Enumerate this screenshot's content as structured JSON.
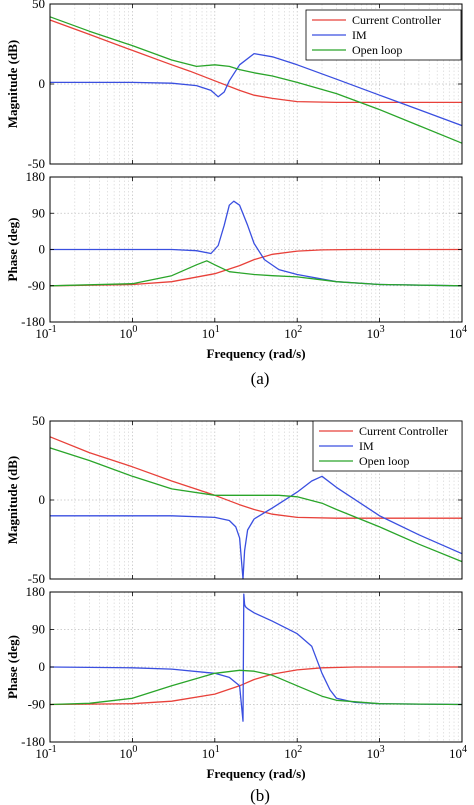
{
  "figures": [
    {
      "caption": "(a)",
      "xlabel": "Frequency  (rad/s)",
      "x_ticks": [
        {
          "base": "10",
          "exp": "-1"
        },
        {
          "base": "10",
          "exp": "0"
        },
        {
          "base": "10",
          "exp": "1"
        },
        {
          "base": "10",
          "exp": "2"
        },
        {
          "base": "10",
          "exp": "3"
        },
        {
          "base": "10",
          "exp": "4"
        }
      ],
      "mag_ylabel": "Magnitude (dB)",
      "mag_ticks": [
        "50",
        "0",
        "-50"
      ],
      "phase_ylabel": "Phase (deg)",
      "phase_ticks": [
        "180",
        "90",
        "0",
        "-90",
        "-180"
      ]
    },
    {
      "caption": "(b)",
      "xlabel": "Frequency  (rad/s)",
      "x_ticks": [
        {
          "base": "10",
          "exp": "-1"
        },
        {
          "base": "10",
          "exp": "0"
        },
        {
          "base": "10",
          "exp": "1"
        },
        {
          "base": "10",
          "exp": "2"
        },
        {
          "base": "10",
          "exp": "3"
        },
        {
          "base": "10",
          "exp": "4"
        }
      ],
      "mag_ylabel": "Magnitude (dB)",
      "mag_ticks": [
        "50",
        "0",
        "-50"
      ],
      "phase_ylabel": "Phase (deg)",
      "phase_ticks": [
        "180",
        "90",
        "0",
        "-90",
        "-180"
      ]
    }
  ],
  "chart_data": [
    {
      "type": "line",
      "panel": "(a) magnitude",
      "xscale": "log",
      "xlim": [
        0.1,
        10000
      ],
      "ylabel": "Magnitude (dB)",
      "ylim": [
        -50,
        50
      ],
      "grid": true,
      "legend_position": "top-right",
      "series": [
        {
          "name": "Current Controller",
          "color": "#e8413a",
          "x": [
            0.1,
            0.3,
            1,
            3,
            5,
            10,
            20,
            30,
            50,
            100,
            300,
            1000,
            10000
          ],
          "y": [
            40,
            31,
            21,
            12,
            8,
            2,
            -4,
            -7,
            -9,
            -11,
            -11.5,
            -11.5,
            -11.5
          ]
        },
        {
          "name": "IM",
          "color": "#3a4fe0",
          "x": [
            0.1,
            1,
            3,
            6,
            9,
            11,
            13,
            15,
            20,
            30,
            50,
            100,
            300,
            1000,
            3000,
            10000
          ],
          "y": [
            1,
            1,
            0.5,
            -1,
            -4,
            -8,
            -5,
            2,
            12,
            19,
            17,
            12,
            3,
            -7,
            -16,
            -26
          ]
        },
        {
          "name": "Open loop",
          "color": "#2aa52a",
          "x": [
            0.1,
            0.3,
            1,
            3,
            6,
            10,
            15,
            20,
            30,
            50,
            100,
            300,
            1000,
            3000,
            10000
          ],
          "y": [
            42,
            33,
            24,
            15,
            11,
            12,
            11,
            9,
            7,
            5,
            1,
            -6,
            -16,
            -26,
            -37
          ]
        }
      ]
    },
    {
      "type": "line",
      "panel": "(a) phase",
      "xscale": "log",
      "xlim": [
        0.1,
        10000
      ],
      "xlabel": "Frequency  (rad/s)",
      "ylabel": "Phase (deg)",
      "ylim": [
        -180,
        180
      ],
      "grid": true,
      "series": [
        {
          "name": "Current Controller",
          "color": "#e8413a",
          "x": [
            0.1,
            1,
            3,
            10,
            20,
            30,
            50,
            100,
            200,
            500,
            1000,
            10000
          ],
          "y": [
            -90,
            -87,
            -80,
            -60,
            -40,
            -25,
            -12,
            -4,
            -1,
            0,
            0,
            0
          ]
        },
        {
          "name": "IM",
          "color": "#3a4fe0",
          "x": [
            0.1,
            1,
            3,
            6,
            9,
            11,
            13,
            15,
            17,
            20,
            25,
            30,
            40,
            60,
            100,
            300,
            1000,
            10000
          ],
          "y": [
            0,
            0,
            0,
            -3,
            -10,
            10,
            60,
            110,
            120,
            110,
            60,
            15,
            -25,
            -50,
            -62,
            -80,
            -87,
            -90
          ]
        },
        {
          "name": "Open loop",
          "color": "#2aa52a",
          "x": [
            0.1,
            1,
            3,
            6,
            8,
            10,
            15,
            20,
            30,
            50,
            100,
            300,
            1000,
            10000
          ],
          "y": [
            -90,
            -85,
            -65,
            -38,
            -28,
            -38,
            -55,
            -58,
            -62,
            -65,
            -68,
            -80,
            -87,
            -90
          ]
        }
      ]
    },
    {
      "type": "line",
      "panel": "(b) magnitude",
      "xscale": "log",
      "xlim": [
        0.1,
        10000
      ],
      "ylabel": "Magnitude (dB)",
      "ylim": [
        -50,
        50
      ],
      "grid": true,
      "legend_position": "top-right",
      "series": [
        {
          "name": "Current Controller",
          "color": "#e8413a",
          "x": [
            0.1,
            0.3,
            1,
            3,
            10,
            20,
            30,
            50,
            100,
            300,
            1000,
            10000
          ],
          "y": [
            40,
            30,
            21,
            12,
            3,
            -3,
            -6,
            -9,
            -11,
            -11.5,
            -11.5,
            -11.5
          ]
        },
        {
          "name": "IM",
          "color": "#3a4fe0",
          "x": [
            0.1,
            1,
            3,
            10,
            15,
            18,
            20,
            22,
            23,
            25,
            30,
            50,
            100,
            150,
            200,
            300,
            1000,
            3000,
            10000
          ],
          "y": [
            -10,
            -10,
            -10,
            -11,
            -13,
            -17,
            -24,
            -50,
            -32,
            -19,
            -12,
            -5,
            5,
            12,
            15,
            8,
            -10,
            -22,
            -34
          ]
        },
        {
          "name": "Open loop",
          "color": "#2aa52a",
          "x": [
            0.1,
            0.3,
            1,
            3,
            10,
            20,
            30,
            60,
            100,
            200,
            300,
            1000,
            3000,
            10000
          ],
          "y": [
            33,
            25,
            15,
            7,
            3,
            3,
            3,
            3,
            2,
            -2,
            -6,
            -17,
            -28,
            -39
          ]
        }
      ]
    },
    {
      "type": "line",
      "panel": "(b) phase",
      "xscale": "log",
      "xlim": [
        0.1,
        10000
      ],
      "xlabel": "Frequency  (rad/s)",
      "ylabel": "Phase (deg)",
      "ylim": [
        -180,
        180
      ],
      "grid": true,
      "series": [
        {
          "name": "Current Controller",
          "color": "#e8413a",
          "x": [
            0.1,
            1,
            3,
            10,
            20,
            30,
            50,
            100,
            200,
            500,
            1000,
            10000
          ],
          "y": [
            -90,
            -88,
            -82,
            -65,
            -45,
            -30,
            -17,
            -7,
            -2,
            0,
            0,
            0
          ]
        },
        {
          "name": "IM",
          "color": "#3a4fe0",
          "x": [
            0.1,
            1,
            3,
            10,
            15,
            20,
            22,
            22.5,
            23,
            23.5,
            25,
            30,
            50,
            100,
            150,
            200,
            250,
            300,
            500,
            1000,
            10000
          ],
          "y": [
            0,
            -2,
            -5,
            -15,
            -25,
            -45,
            -130,
            175,
            150,
            145,
            140,
            130,
            110,
            80,
            50,
            -15,
            -55,
            -75,
            -85,
            -88,
            -90
          ]
        },
        {
          "name": "Open loop",
          "color": "#2aa52a",
          "x": [
            0.1,
            0.3,
            1,
            3,
            10,
            20,
            30,
            50,
            100,
            200,
            300,
            1000,
            10000
          ],
          "y": [
            -90,
            -87,
            -75,
            -45,
            -15,
            -8,
            -10,
            -20,
            -45,
            -70,
            -80,
            -88,
            -90
          ]
        }
      ]
    }
  ]
}
